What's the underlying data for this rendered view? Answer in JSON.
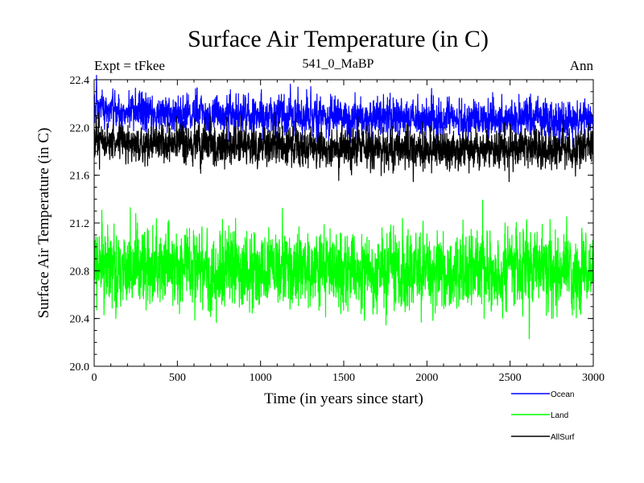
{
  "chart_data": {
    "type": "line",
    "title": "Surface Air Temperature (in C)",
    "subtitle_left": "Expt = tFkee",
    "subtitle_center": "541_0_MaBP",
    "subtitle_right": "Ann",
    "xlabel": "Time (in years since start)",
    "ylabel": "Surface Air Temperature (in C)",
    "xlim": [
      0,
      3000
    ],
    "ylim": [
      20.0,
      22.4
    ],
    "x_ticks": [
      0,
      500,
      1000,
      1500,
      2000,
      2500,
      3000
    ],
    "y_ticks": [
      20.0,
      20.4,
      20.8,
      21.2,
      21.6,
      22.0,
      22.4
    ],
    "y_tick_labels": [
      "20.0",
      "20.4",
      "20.8",
      "21.2",
      "21.6",
      "22.0",
      "22.4"
    ],
    "grid": false,
    "legend_position": "bottom-right",
    "series": [
      {
        "name": "Ocean",
        "color": "#0000ff",
        "x": [
          0,
          100,
          200,
          300,
          400,
          500,
          600,
          700,
          800,
          900,
          1000,
          1100,
          1200,
          1300,
          1400,
          1500,
          1600,
          1700,
          1800,
          1900,
          2000,
          2100,
          2200,
          2300,
          2400,
          2500,
          2600,
          2700,
          2800,
          2900,
          3000
        ],
        "values": [
          22.15,
          22.14,
          22.13,
          22.12,
          22.12,
          22.11,
          22.12,
          22.11,
          22.11,
          22.1,
          22.1,
          22.1,
          22.1,
          22.09,
          22.09,
          22.09,
          22.09,
          22.08,
          22.08,
          22.08,
          22.07,
          22.08,
          22.07,
          22.07,
          22.07,
          22.07,
          22.08,
          22.07,
          22.06,
          22.07,
          22.07
        ],
        "variability": 0.08
      },
      {
        "name": "Land",
        "color": "#00ff00",
        "x": [
          0,
          100,
          200,
          300,
          400,
          500,
          600,
          700,
          800,
          900,
          1000,
          1100,
          1200,
          1300,
          1400,
          1500,
          1600,
          1700,
          1800,
          1900,
          2000,
          2100,
          2200,
          2300,
          2400,
          2500,
          2600,
          2700,
          2800,
          2900,
          3000
        ],
        "values": [
          20.83,
          20.82,
          20.82,
          20.81,
          20.82,
          20.81,
          20.81,
          20.8,
          20.81,
          20.8,
          20.81,
          20.8,
          20.81,
          20.8,
          20.81,
          20.8,
          20.8,
          20.8,
          20.81,
          20.8,
          20.79,
          20.8,
          20.8,
          20.79,
          20.8,
          20.8,
          20.81,
          20.8,
          20.8,
          20.8,
          20.81
        ],
        "variability": 0.16
      },
      {
        "name": "AllSurf",
        "color": "#000000",
        "x": [
          0,
          100,
          200,
          300,
          400,
          500,
          600,
          700,
          800,
          900,
          1000,
          1100,
          1200,
          1300,
          1400,
          1500,
          1600,
          1700,
          1800,
          1900,
          2000,
          2100,
          2200,
          2300,
          2400,
          2500,
          2600,
          2700,
          2800,
          2900,
          3000
        ],
        "values": [
          21.89,
          21.88,
          21.87,
          21.87,
          21.86,
          21.86,
          21.86,
          21.85,
          21.86,
          21.85,
          21.85,
          21.85,
          21.85,
          21.84,
          21.84,
          21.84,
          21.84,
          21.83,
          21.83,
          21.83,
          21.82,
          21.83,
          21.82,
          21.82,
          21.82,
          21.82,
          21.83,
          21.82,
          21.81,
          21.82,
          21.82
        ],
        "variability": 0.08
      }
    ]
  }
}
